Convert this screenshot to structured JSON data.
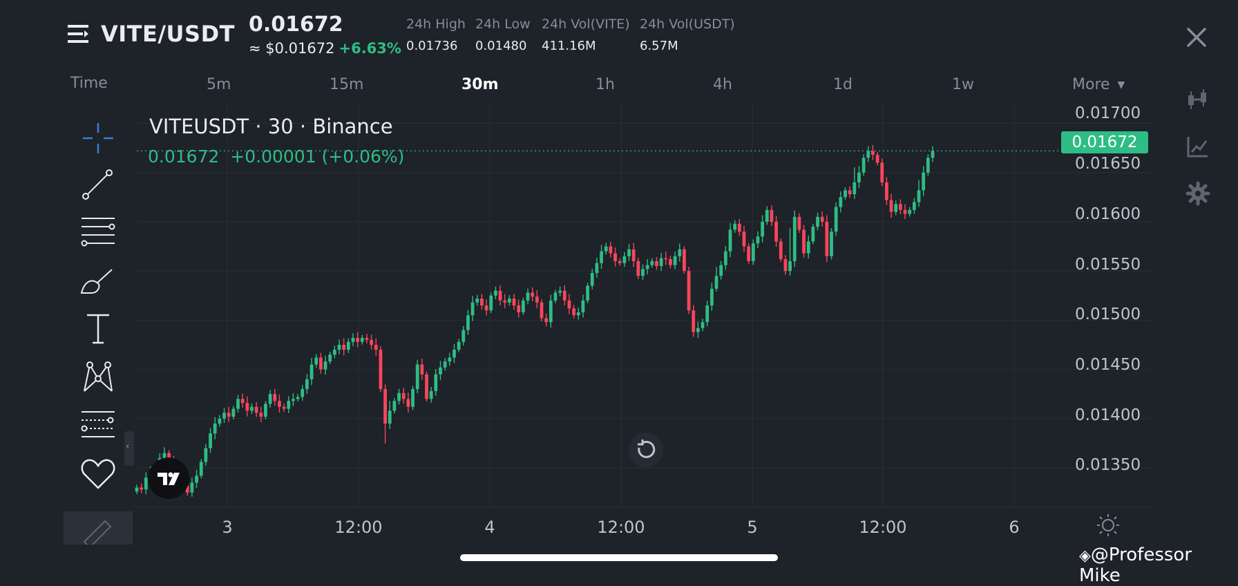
{
  "header": {
    "pair": "VITE/USDT",
    "last_price": "0.01672",
    "usd_approx": "≈ $0.01672",
    "change_pct": "+6.63%",
    "stats": [
      {
        "label": "24h High",
        "value": "0.01736"
      },
      {
        "label": "24h Low",
        "value": "0.01480"
      },
      {
        "label": "24h Vol(VITE)",
        "value": "411.16M"
      },
      {
        "label": "24h Vol(USDT)",
        "value": "6.57M"
      }
    ]
  },
  "timeframes": {
    "time_label": "Time",
    "items": [
      "5m",
      "15m",
      "30m",
      "1h",
      "4h",
      "1d",
      "1w"
    ],
    "active": "30m",
    "more_label": "More"
  },
  "legend": {
    "title": "VITEUSDT · 30 · Binance",
    "values": "0.01672  +0.00001 (+0.06%)"
  },
  "current_price_tag": "0.01672",
  "colors": {
    "background": "#1e2229",
    "up": "#2ebd85",
    "down": "#f6465d",
    "grid": "#2a2f38",
    "text_muted": "#848e9c",
    "crosshair_accent": "#3b7ddd"
  },
  "tools": [
    "crosshair-icon",
    "trendline-icon",
    "horizontal-lines-icon",
    "brush-icon",
    "text-icon",
    "pattern-icon",
    "fib-icon",
    "favorite-icon",
    "ruler-icon"
  ],
  "right_icons": [
    "candle-settings-icon",
    "indicators-icon",
    "gear-icon"
  ],
  "watermark": "@Professor Mike",
  "chart_data": {
    "type": "candlestick",
    "symbol": "VITEUSDT",
    "interval": "30",
    "exchange": "Binance",
    "ylim": [
      0.0131,
      0.0172
    ],
    "y_ticks": [
      "0.01700",
      "0.01650",
      "0.01600",
      "0.01550",
      "0.01500",
      "0.01450",
      "0.01400",
      "0.01350"
    ],
    "x_ticks": [
      "3",
      "12:00",
      "4",
      "12:00",
      "5",
      "12:00",
      "6"
    ],
    "last_price": 0.01672,
    "closes": [
      0.0133,
      0.01328,
      0.0134,
      0.01345,
      0.01352,
      0.0136,
      0.01365,
      0.01358,
      0.01348,
      0.0134,
      0.01332,
      0.01325,
      0.01335,
      0.01342,
      0.01356,
      0.0137,
      0.01385,
      0.01395,
      0.014,
      0.01406,
      0.01402,
      0.0141,
      0.0142,
      0.01416,
      0.01408,
      0.01412,
      0.01406,
      0.01402,
      0.01415,
      0.01425,
      0.01418,
      0.01412,
      0.0141,
      0.01418,
      0.0142,
      0.01422,
      0.0143,
      0.0144,
      0.01455,
      0.01462,
      0.0145,
      0.01458,
      0.01465,
      0.0147,
      0.01475,
      0.0147,
      0.01478,
      0.01482,
      0.01478,
      0.01482,
      0.0148,
      0.01475,
      0.0147,
      0.0143,
      0.01395,
      0.01408,
      0.01418,
      0.01426,
      0.0142,
      0.01412,
      0.0143,
      0.01455,
      0.01445,
      0.0142,
      0.01428,
      0.01445,
      0.01452,
      0.01458,
      0.01462,
      0.0147,
      0.01478,
      0.0149,
      0.01505,
      0.01518,
      0.01522,
      0.01515,
      0.0151,
      0.01525,
      0.0153,
      0.0152,
      0.01518,
      0.01522,
      0.01515,
      0.01508,
      0.0152,
      0.01528,
      0.01524,
      0.01518,
      0.01502,
      0.01498,
      0.0152,
      0.01528,
      0.0153,
      0.0152,
      0.01512,
      0.01505,
      0.01508,
      0.0152,
      0.01535,
      0.01548,
      0.01558,
      0.0157,
      0.01575,
      0.01568,
      0.0156,
      0.01558,
      0.01565,
      0.01572,
      0.0156,
      0.01545,
      0.01552,
      0.01556,
      0.0156,
      0.01555,
      0.01563,
      0.01562,
      0.01556,
      0.01565,
      0.01572,
      0.0155,
      0.0151,
      0.01488,
      0.01492,
      0.01498,
      0.01515,
      0.01532,
      0.01545,
      0.01556,
      0.0157,
      0.01592,
      0.01598,
      0.0159,
      0.01575,
      0.0156,
      0.01578,
      0.01585,
      0.016,
      0.01612,
      0.016,
      0.0158,
      0.01562,
      0.0155,
      0.0156,
      0.01605,
      0.01592,
      0.01568,
      0.0158,
      0.01595,
      0.01605,
      0.016,
      0.01565,
      0.0159,
      0.01615,
      0.01625,
      0.01632,
      0.01628,
      0.0164,
      0.0165,
      0.01665,
      0.01672,
      0.01668,
      0.0166,
      0.0164,
      0.01622,
      0.0161,
      0.01618,
      0.01612,
      0.01608,
      0.01612,
      0.0162,
      0.01632,
      0.0165,
      0.01665,
      0.01672
    ]
  }
}
